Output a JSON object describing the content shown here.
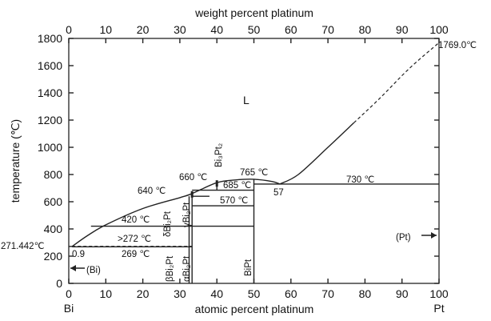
{
  "diagram": {
    "top_axis_title": "weight percent platinum",
    "y_axis_title": "temperature (℃)",
    "x_axis_title": "atomic percent platinum",
    "top_ticks": [
      "0",
      "10",
      "20",
      "30",
      "40",
      "50",
      "60",
      "70",
      "80",
      "90",
      "100"
    ],
    "y_ticks": [
      "0",
      "200",
      "400",
      "600",
      "800",
      "1000",
      "1200",
      "1400",
      "1600",
      "1800"
    ],
    "x_ticks": [
      "0",
      "10",
      "20",
      "30",
      "40",
      "50",
      "60",
      "70",
      "80",
      "90",
      "100"
    ],
    "left_element": "Bi",
    "right_element": "Pt",
    "liquid_label": "L",
    "labels": {
      "pt_melting": "1769.0℃",
      "bi_melting": "271.442℃",
      "t765": "765 ℃",
      "t660": "660 ℃",
      "t640": "640 ℃",
      "t685": "685 ℃",
      "t570": "570 ℃",
      "t730": "730 ℃",
      "t420": "420 ℃",
      "t272": ">272 ℃",
      "t269": "269 ℃",
      "c57": "57",
      "c09": "0.9",
      "bi3pt2": "Bi₃Pt₂",
      "delta_bi2pt": "δBi₂Pt",
      "gamma_bi2pt": "γBi₂Pt",
      "beta_bi2pt": "βBi₂Pt",
      "alpha_bi2pt": "αBi₂Pt",
      "bipt": "BiPt",
      "bi_phase": "(Bi)",
      "pt_phase": "(Pt)"
    }
  },
  "chart_data": {
    "type": "phase-diagram",
    "system": "Bi-Pt",
    "x_range": [
      0,
      100
    ],
    "y_range": [
      0,
      1800
    ],
    "liquidus": [
      [
        0.9,
        271.442
      ],
      [
        5,
        350
      ],
      [
        10,
        430
      ],
      [
        20,
        550
      ],
      [
        30,
        630
      ],
      [
        33.3,
        660
      ],
      [
        40,
        740
      ],
      [
        45,
        760
      ],
      [
        50,
        765
      ],
      [
        57,
        730
      ],
      [
        70,
        1000
      ],
      [
        80,
        1260
      ],
      [
        90,
        1530
      ],
      [
        100,
        1769.0
      ]
    ],
    "invariants": [
      {
        "temperature": 765,
        "composition": 50
      },
      {
        "temperature": 730,
        "composition": [
          50,
          57,
          100
        ]
      },
      {
        "temperature": 685,
        "composition": [
          33.3,
          50
        ]
      },
      {
        "temperature": 660,
        "composition": 33.3
      },
      {
        "temperature": 640,
        "composition": 33.3
      },
      {
        "temperature": 570,
        "composition": [
          33.3,
          50
        ]
      },
      {
        "temperature": 420,
        "composition": [
          6,
          50
        ]
      },
      {
        "temperature": 272,
        "composition": [
          0.9,
          33.3
        ]
      },
      {
        "temperature": 269,
        "composition": [
          0,
          33.3
        ]
      }
    ],
    "compounds": [
      {
        "name": "Bi2Pt",
        "composition": 33.3
      },
      {
        "name": "Bi3Pt2",
        "composition": 40
      },
      {
        "name": "BiPt",
        "composition": 50
      }
    ],
    "melting_points": {
      "Bi": 271.442,
      "Pt": 1769.0
    }
  }
}
